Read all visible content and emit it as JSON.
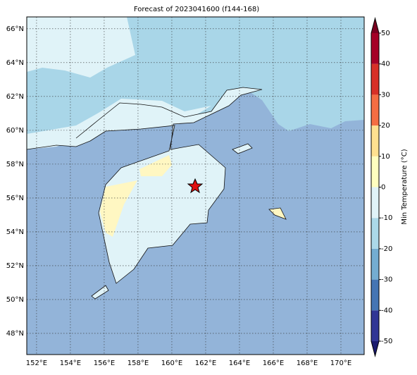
{
  "title": "Forecast of 2023041600 (f144-168)",
  "map": {
    "lonlim": [
      151.42,
      171.375
    ],
    "latlim": [
      46.75,
      66.7
    ],
    "grid": true,
    "lon_ticks": [
      {
        "value": 152,
        "label": "152°E"
      },
      {
        "value": 154,
        "label": "154°E"
      },
      {
        "value": 156,
        "label": "156°E"
      },
      {
        "value": 158,
        "label": "158°E"
      },
      {
        "value": 160,
        "label": "160°E"
      },
      {
        "value": 162,
        "label": "162°E"
      },
      {
        "value": 164,
        "label": "164°E"
      },
      {
        "value": 166,
        "label": "166°E"
      },
      {
        "value": 168,
        "label": "168°E"
      },
      {
        "value": 170,
        "label": "170°E"
      }
    ],
    "lat_ticks": [
      {
        "value": 48,
        "label": "48°N"
      },
      {
        "value": 50,
        "label": "50°N"
      },
      {
        "value": 52,
        "label": "52°N"
      },
      {
        "value": 54,
        "label": "54°N"
      },
      {
        "value": 56,
        "label": "56°N"
      },
      {
        "value": 58,
        "label": "58°N"
      },
      {
        "value": 60,
        "label": "60°N"
      },
      {
        "value": 62,
        "label": "62°N"
      },
      {
        "value": 64,
        "label": "64°N"
      },
      {
        "value": 66,
        "label": "66°N"
      }
    ]
  },
  "colorbar": {
    "label": "Min Temperature (°C)",
    "extend": "both",
    "ticks": [
      -50,
      -40,
      -30,
      -20,
      -10,
      0,
      10,
      20,
      30,
      40,
      50
    ],
    "colors": [
      "#313695",
      "#4575b4",
      "#74add1",
      "#abd9e9",
      "#e0f3f8",
      "#ffffbf",
      "#fee090",
      "#f46d43",
      "#d73027",
      "#a50026"
    ],
    "under_color": "#1a1a6e",
    "over_color": "#7a0020"
  }
}
